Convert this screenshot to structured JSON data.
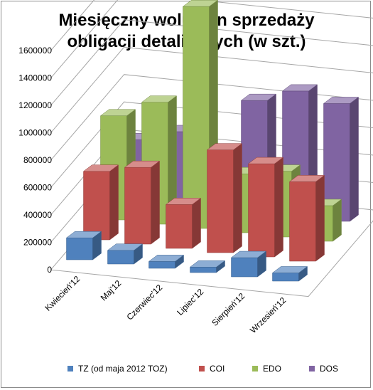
{
  "chart_data": {
    "type": "bar",
    "title_lines": [
      "Miesięczny wolumen sprzedaży",
      "obligacji detalicznych (w szt.)"
    ],
    "categories": [
      "Kwiecień'12",
      "Maj'12",
      "Czerwiec'12",
      "Lipiec'12",
      "Sierpień'12",
      "Wrzesień'12"
    ],
    "series": [
      {
        "name": "TZ (od maja 2012 TOZ)",
        "color": "#4f81bd",
        "values": [
          160000,
          100000,
          50000,
          40000,
          140000,
          60000
        ]
      },
      {
        "name": "COI",
        "color": "#c0504d",
        "values": [
          500000,
          560000,
          320000,
          750000,
          680000,
          580000
        ]
      },
      {
        "name": "EDO",
        "color": "#9bbb59",
        "values": [
          760000,
          890000,
          1620000,
          430000,
          480000,
          260000
        ]
      },
      {
        "name": "DOS",
        "color": "#8064a2",
        "values": [
          440000,
          530000,
          0,
          820000,
          920000,
          860000
        ]
      }
    ],
    "yticks": [
      0,
      200000,
      400000,
      600000,
      800000,
      1000000,
      1200000,
      1400000,
      1600000
    ],
    "ylim": [
      0,
      1600000
    ],
    "grid": true,
    "legend": "bottom",
    "projection": "3d-column"
  }
}
